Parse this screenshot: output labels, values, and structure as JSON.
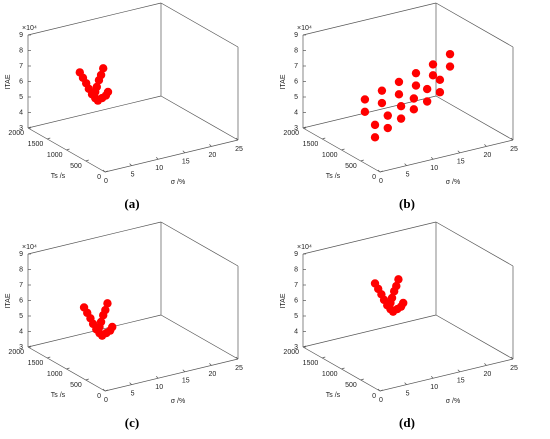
{
  "chart_data": [
    {
      "type": "scatter3d",
      "caption": "(a)",
      "xlabel": "σ /%",
      "ylabel": "Ts /s",
      "zlabel": "ITAE",
      "zoffset": "×10⁴",
      "xlim": [
        0,
        25
      ],
      "xticks": [
        0,
        5,
        10,
        15,
        20,
        25
      ],
      "ylim": [
        0,
        2000
      ],
      "yticks": [
        0,
        500,
        1000,
        1500,
        2000
      ],
      "zlim": [
        3,
        9
      ],
      "zticks": [
        3,
        4,
        5,
        6,
        7,
        8,
        9
      ],
      "series": [
        {
          "color": "#ff0000",
          "x": [
            2.5,
            3.1,
            3.7,
            4.2,
            4.8,
            5.4,
            5.9,
            6.7,
            7.4,
            7.8,
            6.9,
            6.5,
            6.1,
            5.7,
            5.4
          ],
          "y": [
            1000,
            1000,
            1000,
            1000,
            1000,
            1000,
            1000,
            1000,
            1000,
            1000,
            1000,
            1000,
            1000,
            1000,
            1000
          ],
          "z": [
            7.8,
            7.4,
            7.0,
            6.6,
            6.2,
            5.9,
            5.7,
            5.8,
            5.9,
            6.1,
            7.7,
            7.3,
            7.0,
            6.6,
            6.3
          ]
        }
      ]
    },
    {
      "type": "scatter3d",
      "caption": "(b)",
      "xlabel": "σ /%",
      "ylabel": "Ts /s",
      "zlabel": "ITAE",
      "zoffset": "×10⁴",
      "xlim": [
        0,
        25
      ],
      "xticks": [
        0,
        5,
        10,
        15,
        20,
        25
      ],
      "ylim": [
        0,
        2000
      ],
      "yticks": [
        0,
        500,
        1000,
        1500,
        2000
      ],
      "zlim": [
        3,
        9
      ],
      "zticks": [
        3,
        4,
        5,
        6,
        7,
        8,
        9
      ],
      "series": [
        {
          "color": "#ff0000",
          "x": [
            4.4,
            7.6,
            10.8,
            14.0,
            17.2,
            20.4,
            4.4,
            7.6,
            10.8,
            14.0,
            17.2,
            20.4,
            6.3,
            8.7,
            11.2,
            13.6,
            16.1,
            18.5,
            6.3,
            8.7,
            11.2,
            13.6,
            16.1,
            18.5
          ],
          "y": [
            1000,
            1000,
            1000,
            1000,
            1000,
            1000,
            1000,
            1000,
            1000,
            1000,
            1000,
            1000,
            1000,
            1000,
            1000,
            1000,
            1000,
            1000,
            1000,
            1000,
            1000,
            1000,
            1000,
            1000
          ],
          "z": [
            5.9,
            6.2,
            6.5,
            6.8,
            7.1,
            7.5,
            5.1,
            5.4,
            5.7,
            6.0,
            6.4,
            6.7,
            4.1,
            4.5,
            4.9,
            5.2,
            5.6,
            6.0,
            3.3,
            3.7,
            4.1,
            4.5,
            4.8,
            5.2
          ]
        }
      ]
    },
    {
      "type": "scatter3d",
      "caption": "(c)",
      "xlabel": "σ /%",
      "ylabel": "Ts /s",
      "zlabel": "ITAE",
      "zoffset": "×10⁴",
      "xlim": [
        0,
        25
      ],
      "xticks": [
        0,
        5,
        10,
        15,
        20,
        25
      ],
      "ylim": [
        0,
        2000
      ],
      "yticks": [
        0,
        500,
        1000,
        1500,
        2000
      ],
      "zlim": [
        3,
        9
      ],
      "zticks": [
        3,
        4,
        5,
        6,
        7,
        8,
        9
      ],
      "series": [
        {
          "color": "#ff0000",
          "x": [
            3.3,
            3.9,
            4.5,
            5.0,
            5.6,
            6.2,
            6.7,
            7.5,
            8.2,
            8.6,
            7.7,
            7.3,
            6.9,
            6.5,
            6.2
          ],
          "y": [
            1000,
            1000,
            1000,
            1000,
            1000,
            1000,
            1000,
            1000,
            1000,
            1000,
            1000,
            1000,
            1000,
            1000,
            1000
          ],
          "z": [
            6.7,
            6.3,
            5.9,
            5.5,
            5.1,
            4.8,
            4.6,
            4.7,
            4.8,
            5.0,
            6.6,
            6.2,
            5.9,
            5.5,
            5.2
          ]
        }
      ]
    },
    {
      "type": "scatter3d",
      "caption": "(d)",
      "xlabel": "σ /%",
      "ylabel": "Ts /s",
      "zlabel": "ITAE",
      "zoffset": "×10⁴",
      "xlim": [
        0,
        25
      ],
      "xticks": [
        0,
        5,
        10,
        15,
        20,
        25
      ],
      "ylim": [
        0,
        2000
      ],
      "yticks": [
        0,
        500,
        1000,
        1500,
        2000
      ],
      "zlim": [
        3,
        9
      ],
      "zticks": [
        3,
        4,
        5,
        6,
        7,
        8,
        9
      ],
      "series": [
        {
          "color": "#ff0000",
          "x": [
            6.3,
            6.9,
            7.5,
            8.0,
            8.6,
            9.2,
            9.7,
            10.5,
            11.2,
            11.6,
            10.7,
            10.3,
            9.9,
            9.5,
            9.2
          ],
          "y": [
            1000,
            1000,
            1000,
            1000,
            1000,
            1000,
            1000,
            1000,
            1000,
            1000,
            1000,
            1000,
            1000,
            1000,
            1000
          ],
          "z": [
            8.0,
            7.6,
            7.2,
            6.8,
            6.4,
            6.1,
            5.9,
            6.0,
            6.1,
            6.3,
            7.9,
            7.5,
            7.2,
            6.8,
            6.5
          ]
        }
      ]
    }
  ]
}
